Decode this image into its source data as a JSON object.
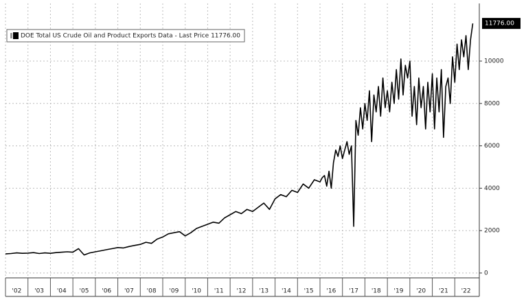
{
  "chart_data": {
    "type": "line",
    "x": [
      2002,
      2002.25,
      2002.5,
      2002.75,
      2003,
      2003.25,
      2003.5,
      2003.75,
      2004,
      2004.25,
      2004.5,
      2004.75,
      2005,
      2005.25,
      2005.5,
      2005.75,
      2006,
      2006.25,
      2006.5,
      2006.75,
      2007,
      2007.25,
      2007.5,
      2007.75,
      2008,
      2008.25,
      2008.5,
      2008.75,
      2009,
      2009.25,
      2009.5,
      2009.75,
      2010,
      2010.25,
      2010.5,
      2010.75,
      2011,
      2011.25,
      2011.5,
      2011.75,
      2012,
      2012.25,
      2012.5,
      2012.75,
      2013,
      2013.25,
      2013.5,
      2013.75,
      2014,
      2014.25,
      2014.5,
      2014.75,
      2015,
      2015.25,
      2015.5,
      2015.75,
      2016,
      2016.1,
      2016.2,
      2016.3,
      2016.4,
      2016.5,
      2016.6,
      2016.7,
      2016.8,
      2016.9,
      2017,
      2017.1,
      2017.2,
      2017.3,
      2017.4,
      2017.5,
      2017.6,
      2017.7,
      2017.8,
      2017.9,
      2018,
      2018.1,
      2018.2,
      2018.3,
      2018.4,
      2018.5,
      2018.6,
      2018.7,
      2018.8,
      2018.9,
      2019,
      2019.1,
      2019.2,
      2019.3,
      2019.4,
      2019.5,
      2019.6,
      2019.7,
      2019.8,
      2019.9,
      2020,
      2020.1,
      2020.2,
      2020.3,
      2020.4,
      2020.5,
      2020.6,
      2020.7,
      2020.8,
      2020.9,
      2021,
      2021.1,
      2021.2,
      2021.3,
      2021.4,
      2021.5,
      2021.6,
      2021.7,
      2021.8,
      2021.9,
      2022,
      2022.1,
      2022.2,
      2022.3,
      2022.4,
      2022.5,
      2022.6,
      2022.7,
      2022.8
    ],
    "series": [
      {
        "name": "DOE Total US Crude Oil and Product Exports Data - Last Price 11776.00",
        "color": "#000000",
        "values": [
          900,
          920,
          950,
          930,
          940,
          960,
          920,
          950,
          930,
          960,
          980,
          1000,
          980,
          1150,
          850,
          950,
          1000,
          1050,
          1100,
          1150,
          1200,
          1180,
          1250,
          1300,
          1350,
          1450,
          1400,
          1600,
          1700,
          1850,
          1900,
          1950,
          1750,
          1900,
          2100,
          2200,
          2300,
          2400,
          2350,
          2600,
          2750,
          2900,
          2800,
          3000,
          2900,
          3100,
          3300,
          3000,
          3500,
          3700,
          3600,
          3900,
          3800,
          4200,
          4000,
          4400,
          4300,
          4500,
          4600,
          4100,
          4800,
          4000,
          5200,
          5800,
          5500,
          6000,
          5400,
          5800,
          6200,
          5600,
          6000,
          2200,
          7200,
          6500,
          7800,
          6800,
          8000,
          7200,
          8600,
          6200,
          8400,
          7600,
          8800,
          7400,
          9200,
          7800,
          8600,
          7600,
          9000,
          8000,
          9600,
          8200,
          10100,
          8400,
          9800,
          9200,
          10000,
          7400,
          8800,
          7000,
          9200,
          7800,
          8800,
          6800,
          9000,
          7600,
          9400,
          6800,
          9200,
          7600,
          9600,
          6400,
          8800,
          9200,
          8000,
          10200,
          9000,
          10800,
          9600,
          11000,
          10200,
          11200,
          9600,
          11000,
          11776
        ]
      }
    ],
    "last_value_label": "11776.00",
    "xlim": [
      2002,
      2023
    ],
    "ylim": [
      -230,
      12720
    ],
    "yticks": [
      0,
      2000,
      4000,
      6000,
      8000,
      10000
    ],
    "xticks": [
      {
        "value": 2002,
        "label": "'02"
      },
      {
        "value": 2003,
        "label": "'03"
      },
      {
        "value": 2004,
        "label": "'04"
      },
      {
        "value": 2005,
        "label": "'05"
      },
      {
        "value": 2006,
        "label": "'06"
      },
      {
        "value": 2007,
        "label": "'07"
      },
      {
        "value": 2008,
        "label": "'08"
      },
      {
        "value": 2009,
        "label": "'09"
      },
      {
        "value": 2010,
        "label": "'10"
      },
      {
        "value": 2011,
        "label": "'11"
      },
      {
        "value": 2012,
        "label": "'12"
      },
      {
        "value": 2013,
        "label": "'13"
      },
      {
        "value": 2014,
        "label": "'14"
      },
      {
        "value": 2015,
        "label": "'15"
      },
      {
        "value": 2016,
        "label": "'16"
      },
      {
        "value": 2017,
        "label": "'17"
      },
      {
        "value": 2018,
        "label": "'18"
      },
      {
        "value": 2019,
        "label": "'19"
      },
      {
        "value": 2020,
        "label": "'20"
      },
      {
        "value": 2021,
        "label": "'21"
      },
      {
        "value": 2022,
        "label": "'22"
      }
    ],
    "grid": true,
    "legend": "top-left"
  }
}
